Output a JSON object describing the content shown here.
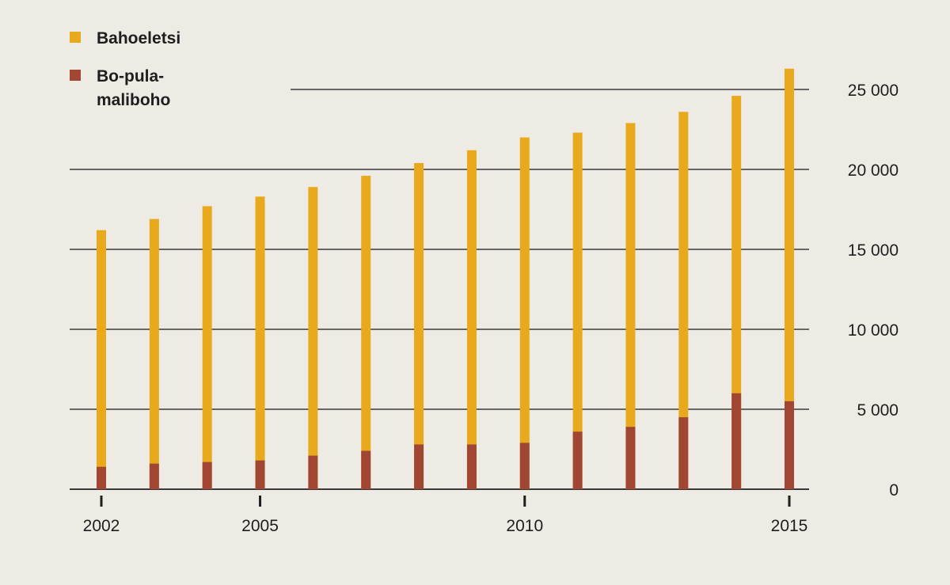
{
  "chart_data": {
    "type": "bar",
    "mode": "overlapping",
    "categories": [
      "2002",
      "2003",
      "2004",
      "2005",
      "2006",
      "2007",
      "2008",
      "2009",
      "2010",
      "2011",
      "2012",
      "2013",
      "2014",
      "2015"
    ],
    "x_tick_labels": [
      "2002",
      "2005",
      "2010",
      "2015"
    ],
    "series": [
      {
        "name": "Bahoeletsi",
        "color": "#e8a91c",
        "values": [
          16200,
          16900,
          17700,
          18300,
          18900,
          19600,
          20400,
          21200,
          22000,
          22300,
          22900,
          23600,
          24600,
          26300
        ]
      },
      {
        "name": "Bo-pula-maliboho",
        "color": "#a04632",
        "values": [
          1400,
          1600,
          1700,
          1800,
          2100,
          2400,
          2800,
          2800,
          2900,
          3600,
          3900,
          4500,
          6000,
          5500
        ]
      }
    ],
    "y_ticks": [
      0,
      5000,
      10000,
      15000,
      20000,
      25000
    ],
    "y_tick_labels": [
      "0",
      "5 000",
      "10 000",
      "15 000",
      "20 000",
      "25 000"
    ],
    "ylim": [
      0,
      26500
    ],
    "y_axis_side": "right",
    "grid": true,
    "legend_position": "top-left",
    "title": "",
    "xlabel": "",
    "ylabel": ""
  }
}
